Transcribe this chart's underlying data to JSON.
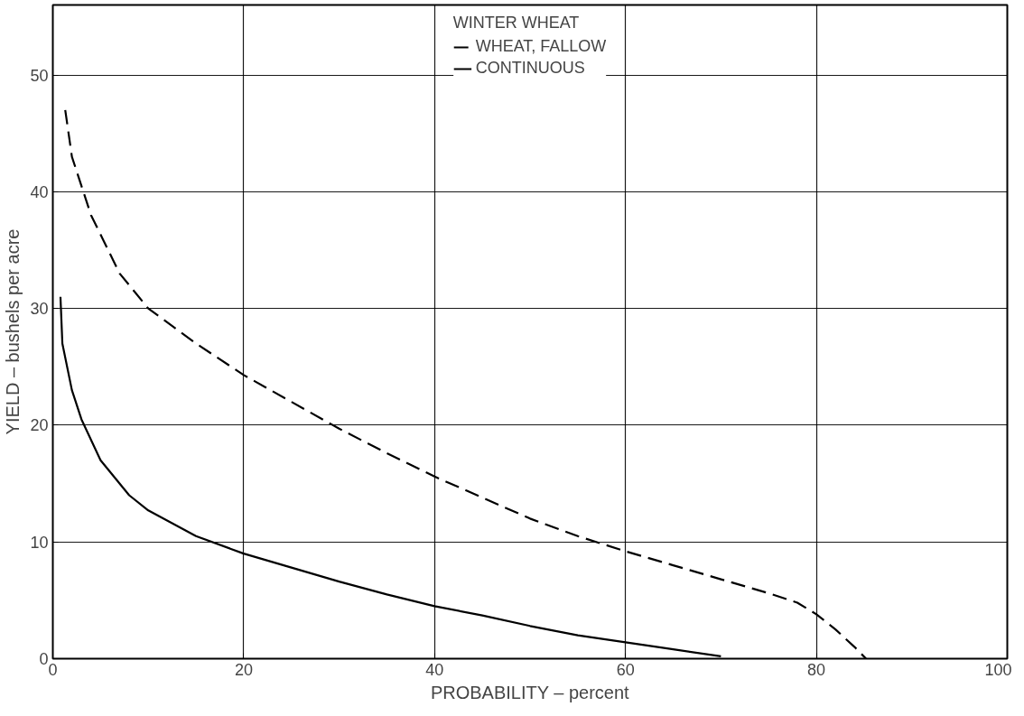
{
  "chart_data": {
    "type": "line",
    "xlabel": "PROBABILITY – percent",
    "ylabel": "YIELD – bushels per acre",
    "legend_title": "WINTER WHEAT",
    "xlim": [
      0,
      100
    ],
    "ylim": [
      0,
      56
    ],
    "xticks": [
      0,
      20,
      40,
      60,
      80,
      100
    ],
    "yticks": [
      0,
      10,
      20,
      30,
      40,
      50
    ],
    "grid": true,
    "legend": "top",
    "marker": "none",
    "series": [
      {
        "name": "WHEAT, FALLOW",
        "color": "#000000",
        "line_style": "dashed",
        "x": [
          1.3,
          2,
          4,
          7,
          10,
          15,
          20,
          25,
          30,
          35,
          40,
          45,
          50,
          55,
          60,
          65,
          70,
          75,
          78,
          80,
          82,
          84,
          85.2
        ],
        "values": [
          47,
          43,
          38,
          33,
          30,
          27,
          24.3,
          22,
          19.7,
          17.6,
          15.6,
          13.8,
          12,
          10.5,
          9.2,
          8,
          6.8,
          5.6,
          4.8,
          3.8,
          2.5,
          1,
          0
        ]
      },
      {
        "name": "CONTINUOUS",
        "color": "#000000",
        "line_style": "solid",
        "x": [
          0.8,
          1,
          2,
          3,
          5,
          8,
          10,
          15,
          20,
          25,
          30,
          35,
          40,
          45,
          50,
          55,
          60,
          65,
          70
        ],
        "values": [
          31,
          27,
          23,
          20.5,
          17,
          14,
          12.7,
          10.5,
          9,
          7.8,
          6.6,
          5.5,
          4.5,
          3.7,
          2.8,
          2,
          1.4,
          0.8,
          0.2
        ]
      }
    ]
  }
}
